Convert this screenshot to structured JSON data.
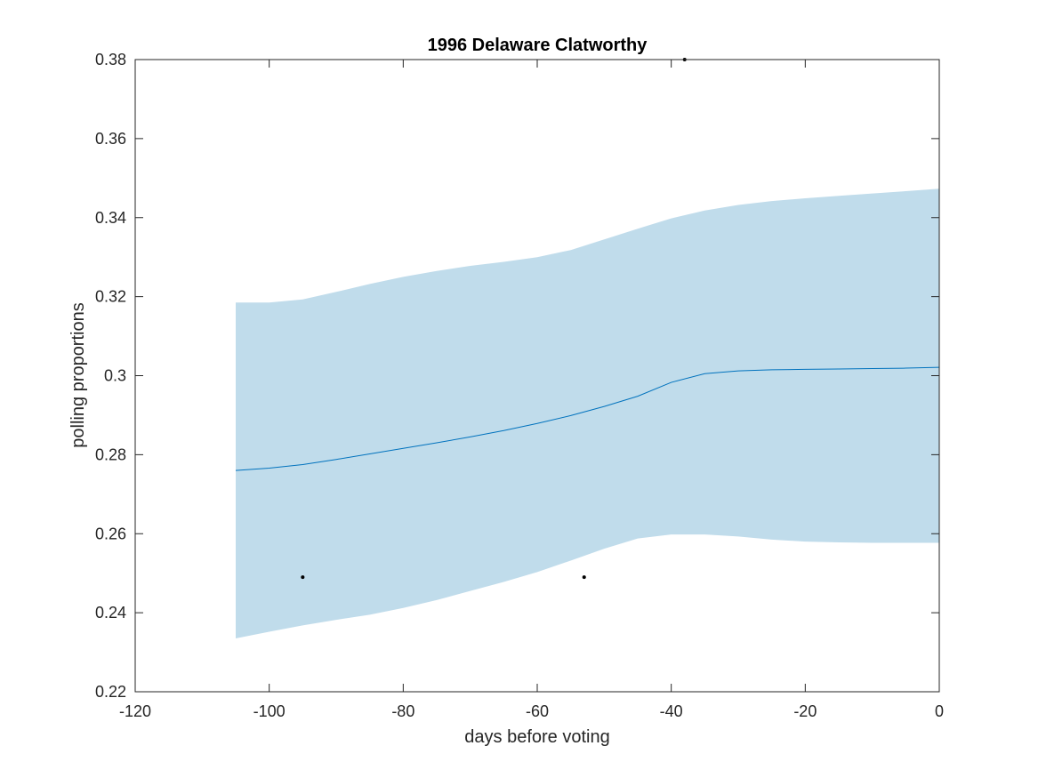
{
  "chart_data": {
    "type": "line",
    "title": "1996 Delaware Clatworthy",
    "xlabel": "days before voting",
    "ylabel": "polling proportions",
    "xlim": [
      -120,
      0
    ],
    "ylim": [
      0.22,
      0.38
    ],
    "xticks": [
      -120,
      -100,
      -80,
      -60,
      -40,
      -20,
      0
    ],
    "xtick_labels": [
      "-120",
      "-100",
      "-80",
      "-60",
      "-40",
      "-20",
      "0"
    ],
    "yticks": [
      0.22,
      0.24,
      0.26,
      0.28,
      0.3,
      0.32,
      0.34,
      0.36,
      0.38
    ],
    "ytick_labels": [
      "0.22",
      "0.24",
      "0.26",
      "0.28",
      "0.3",
      "0.32",
      "0.34",
      "0.36",
      "0.38"
    ],
    "grid": false,
    "colors": {
      "band": "#c0dceb",
      "line": "#0072bd",
      "points": "#000000",
      "axes": "#262626"
    },
    "series": [
      {
        "type": "band",
        "x": [
          -105,
          -100,
          -95,
          -90,
          -85,
          -80,
          -75,
          -70,
          -65,
          -60,
          -55,
          -50,
          -45,
          -40,
          -35,
          -30,
          -25,
          -20,
          -15,
          -10,
          -5,
          0
        ],
        "upper": [
          0.3185,
          0.3185,
          0.3193,
          0.3212,
          0.3232,
          0.325,
          0.3265,
          0.3278,
          0.3288,
          0.33,
          0.3318,
          0.3345,
          0.3372,
          0.3398,
          0.3418,
          0.3432,
          0.3442,
          0.3449,
          0.3455,
          0.3461,
          0.3467,
          0.3473
        ],
        "lower": [
          0.2335,
          0.2352,
          0.2368,
          0.2382,
          0.2395,
          0.2412,
          0.2432,
          0.2455,
          0.2478,
          0.2503,
          0.2532,
          0.2562,
          0.2588,
          0.2598,
          0.2598,
          0.2593,
          0.2585,
          0.258,
          0.2578,
          0.2577,
          0.2577,
          0.2577
        ]
      },
      {
        "type": "line",
        "x": [
          -105,
          -100,
          -95,
          -90,
          -85,
          -80,
          -75,
          -70,
          -65,
          -60,
          -55,
          -50,
          -45,
          -40,
          -35,
          -30,
          -25,
          -20,
          -15,
          -10,
          -5,
          0
        ],
        "y": [
          0.276,
          0.2766,
          0.2775,
          0.2788,
          0.2802,
          0.2816,
          0.283,
          0.2845,
          0.2861,
          0.2879,
          0.2899,
          0.2922,
          0.2948,
          0.2983,
          0.3005,
          0.3012,
          0.3015,
          0.3016,
          0.3017,
          0.3018,
          0.3019,
          0.3021
        ]
      },
      {
        "type": "scatter",
        "x": [
          -95,
          -53,
          -38
        ],
        "y": [
          0.249,
          0.249,
          0.38
        ]
      }
    ]
  }
}
